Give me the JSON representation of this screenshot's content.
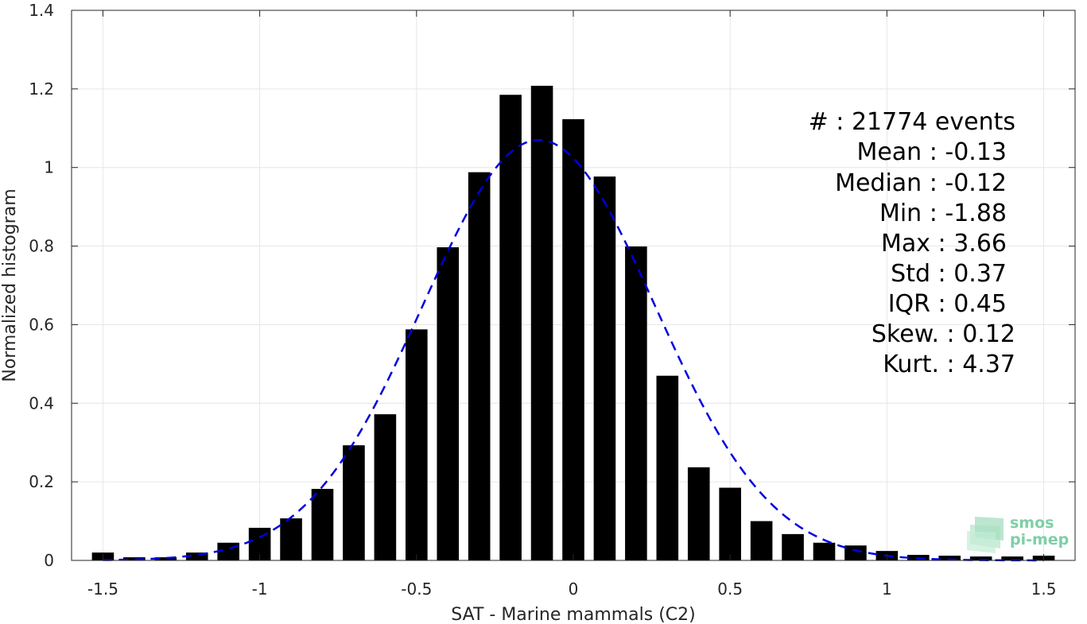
{
  "chart_data": {
    "type": "bar",
    "xlabel": "SAT - Marine mammals (C2)",
    "ylabel": "Normalized histogram",
    "xlim": [
      -1.6,
      1.6
    ],
    "ylim": [
      0,
      1.4
    ],
    "xticks": [
      -1.5,
      -1,
      -0.5,
      0,
      0.5,
      1,
      1.5
    ],
    "xtick_labels": [
      "-1.5",
      "-1",
      "-0.5",
      "0",
      "0.5",
      "1",
      "1.5"
    ],
    "yticks": [
      0,
      0.2,
      0.4,
      0.6,
      0.8,
      1,
      1.2,
      1.4
    ],
    "ytick_labels": [
      "0",
      "0.2",
      "0.4",
      "0.6",
      "0.8",
      "1",
      "1.2",
      "1.4"
    ],
    "grid": true,
    "bin_centers": [
      -1.5,
      -1.4,
      -1.3,
      -1.2,
      -1.1,
      -1.0,
      -0.9,
      -0.8,
      -0.7,
      -0.6,
      -0.5,
      -0.4,
      -0.3,
      -0.2,
      -0.1,
      0.0,
      0.1,
      0.2,
      0.3,
      0.4,
      0.5,
      0.6,
      0.7,
      0.8,
      0.9,
      1.0,
      1.1,
      1.2,
      1.3,
      1.4,
      1.5
    ],
    "values": [
      0.02,
      0.008,
      0.008,
      0.02,
      0.045,
      0.083,
      0.107,
      0.182,
      0.293,
      0.372,
      0.588,
      0.797,
      0.988,
      1.185,
      1.208,
      1.123,
      0.977,
      0.799,
      0.47,
      0.237,
      0.185,
      0.1,
      0.067,
      0.045,
      0.038,
      0.024,
      0.014,
      0.012,
      0.01,
      0.01,
      0.012
    ],
    "bar_color": "#000000",
    "fit_curve": {
      "style": "dashed",
      "color": "#0000dd",
      "mean": -0.11,
      "std": 0.37,
      "peak": 1.07
    },
    "stats": {
      "count_label": "#  : 21774 events",
      "mean_label": "Mean : -0.13",
      "median_label": "Median : -0.12",
      "min_label": "Min : -1.88",
      "max_label": "Max : 3.66",
      "std_label": "Std : 0.37",
      "iqr_label": "IQR : 0.45",
      "skew_label": "Skew. : 0.12",
      "kurt_label": "Kurt. : 4.37"
    }
  },
  "logo": {
    "line1": "smos",
    "line2": "pi-mep",
    "color": "#7ecfa6"
  }
}
